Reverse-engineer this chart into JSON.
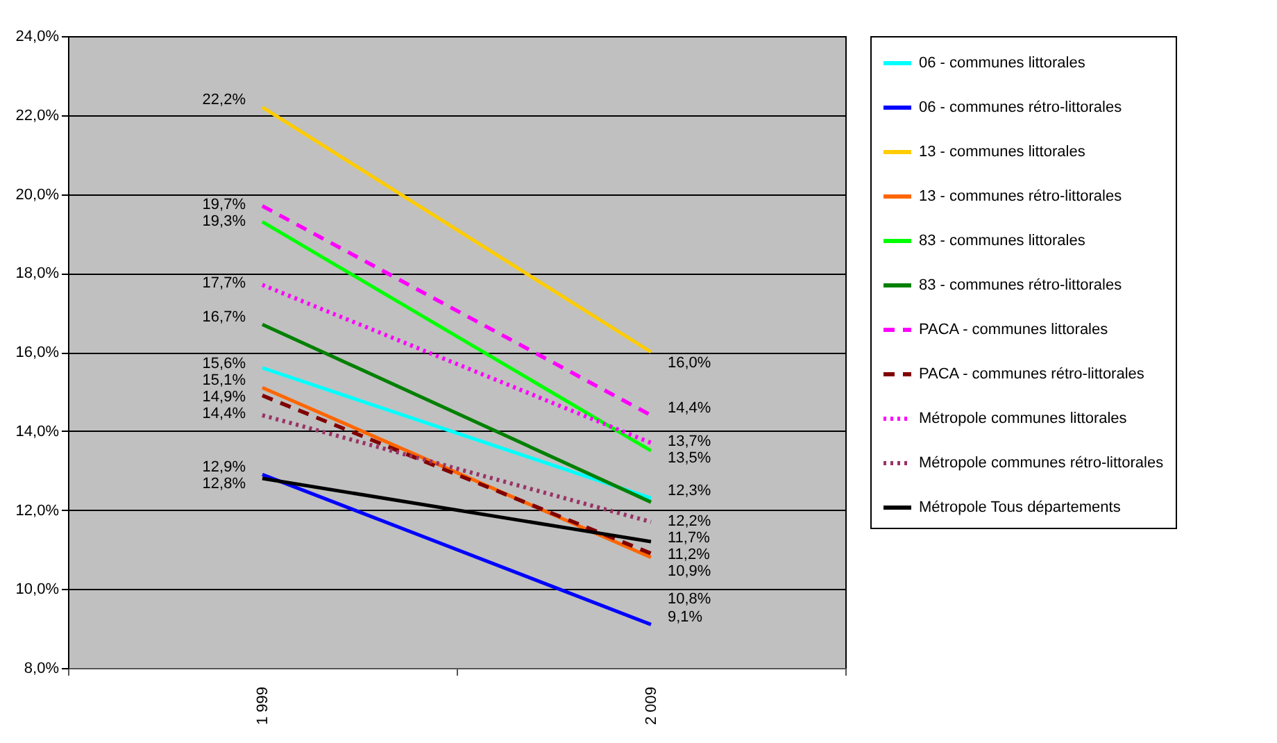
{
  "chart_data": {
    "type": "line",
    "categories": [
      "1 999",
      "2 009"
    ],
    "ylim": [
      8,
      24
    ],
    "yticks": [
      {
        "value": 8,
        "label": "8,0%"
      },
      {
        "value": 10,
        "label": "10,0%"
      },
      {
        "value": 12,
        "label": "12,0%"
      },
      {
        "value": 14,
        "label": "14,0%"
      },
      {
        "value": 16,
        "label": "16,0%"
      },
      {
        "value": 18,
        "label": "18,0%"
      },
      {
        "value": 20,
        "label": "20,0%"
      },
      {
        "value": 22,
        "label": "22,0%"
      },
      {
        "value": 24,
        "label": "24,0%"
      }
    ],
    "grid": "y",
    "legend": "right",
    "marker": "none",
    "series": [
      {
        "name": "06 - communes littorales",
        "color": "#00ffff",
        "line_style": "solid",
        "values": [
          15.6,
          12.3
        ],
        "value_labels": [
          "15,6%",
          "12,3%"
        ]
      },
      {
        "name": "06 - communes rétro-littorales",
        "color": "#0000ff",
        "line_style": "solid",
        "values": [
          12.9,
          9.1
        ],
        "value_labels": [
          "12,9%",
          "9,1%"
        ]
      },
      {
        "name": "13 - communes littorales",
        "color": "#ffcc00",
        "line_style": "solid",
        "values": [
          22.2,
          16.0
        ],
        "value_labels": [
          "22,2%",
          "16,0%"
        ]
      },
      {
        "name": "13 - communes rétro-littorales",
        "color": "#ff6600",
        "line_style": "solid",
        "values": [
          15.1,
          10.8
        ],
        "value_labels": [
          "15,1%",
          "10,8%"
        ]
      },
      {
        "name": "83 - communes littorales",
        "color": "#00ff00",
        "line_style": "solid",
        "values": [
          19.3,
          13.5
        ],
        "value_labels": [
          "19,3%",
          "13,5%"
        ]
      },
      {
        "name": "83 - communes rétro-littorales",
        "color": "#008000",
        "line_style": "solid",
        "values": [
          16.7,
          12.2
        ],
        "value_labels": [
          "16,7%",
          "12,2%"
        ]
      },
      {
        "name": "PACA - communes littorales",
        "color": "#ff00ff",
        "line_style": "dashed",
        "values": [
          19.7,
          14.4
        ],
        "value_labels": [
          "19,7%",
          "14,4%"
        ]
      },
      {
        "name": "PACA - communes rétro-littorales",
        "color": "#800000",
        "line_style": "dashed",
        "values": [
          14.9,
          10.9
        ],
        "value_labels": [
          "14,9%",
          "10,9%"
        ]
      },
      {
        "name": "Métropole communes littorales",
        "color": "#ff00ff",
        "line_style": "dotted",
        "values": [
          17.7,
          13.7
        ],
        "value_labels": [
          "17,7%",
          "13,7%"
        ]
      },
      {
        "name": "Métropole communes rétro-littorales",
        "color": "#993366",
        "line_style": "dotted",
        "values": [
          14.4,
          11.7
        ],
        "value_labels": [
          "14,4%",
          "11,7%"
        ]
      },
      {
        "name": "Métropole Tous départements",
        "color": "#000000",
        "line_style": "solid",
        "values": [
          12.8,
          11.2
        ],
        "value_labels": [
          "12,8%",
          "11,2%"
        ]
      }
    ]
  }
}
